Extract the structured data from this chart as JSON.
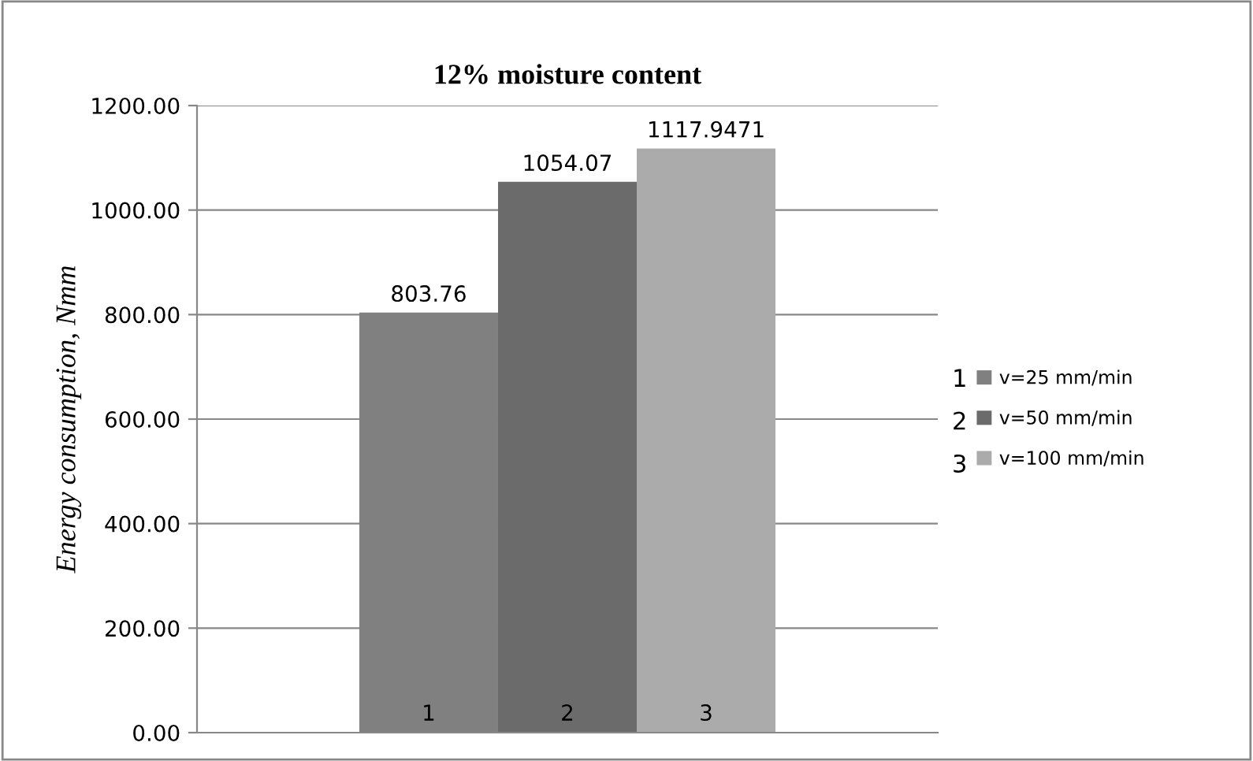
{
  "chart_data": {
    "type": "bar",
    "title": "12% moisture content",
    "ylabel": "Energy consumption, Nmm",
    "categories": [
      "1",
      "2",
      "3"
    ],
    "series": [
      {
        "name": "v=25 mm/min",
        "color": "#808080",
        "values": [
          803.76,
          null,
          null
        ],
        "value_labels": [
          "803.76",
          null,
          null
        ]
      },
      {
        "name": "v=50 mm/min",
        "color": "#6b6b6b",
        "values": [
          null,
          1054.07,
          null
        ],
        "value_labels": [
          null,
          "1054.07",
          null
        ]
      },
      {
        "name": "v=100 mm/min",
        "color": "#ababab",
        "values": [
          null,
          null,
          1117.9471
        ],
        "value_labels": [
          null,
          null,
          "1117.9471"
        ]
      }
    ],
    "ylim": [
      0,
      1200
    ],
    "yticks": [
      {
        "value": 0,
        "label": "0.00"
      },
      {
        "value": 200,
        "label": "200.00"
      },
      {
        "value": 400,
        "label": "400.00"
      },
      {
        "value": 600,
        "label": "600.00"
      },
      {
        "value": 800,
        "label": "800.00"
      },
      {
        "value": 1000,
        "label": "1000.00"
      },
      {
        "value": 1200,
        "label": "1200.00"
      }
    ],
    "grid": "y",
    "legend": "right",
    "annotations": [
      "1",
      "2",
      "3"
    ]
  }
}
